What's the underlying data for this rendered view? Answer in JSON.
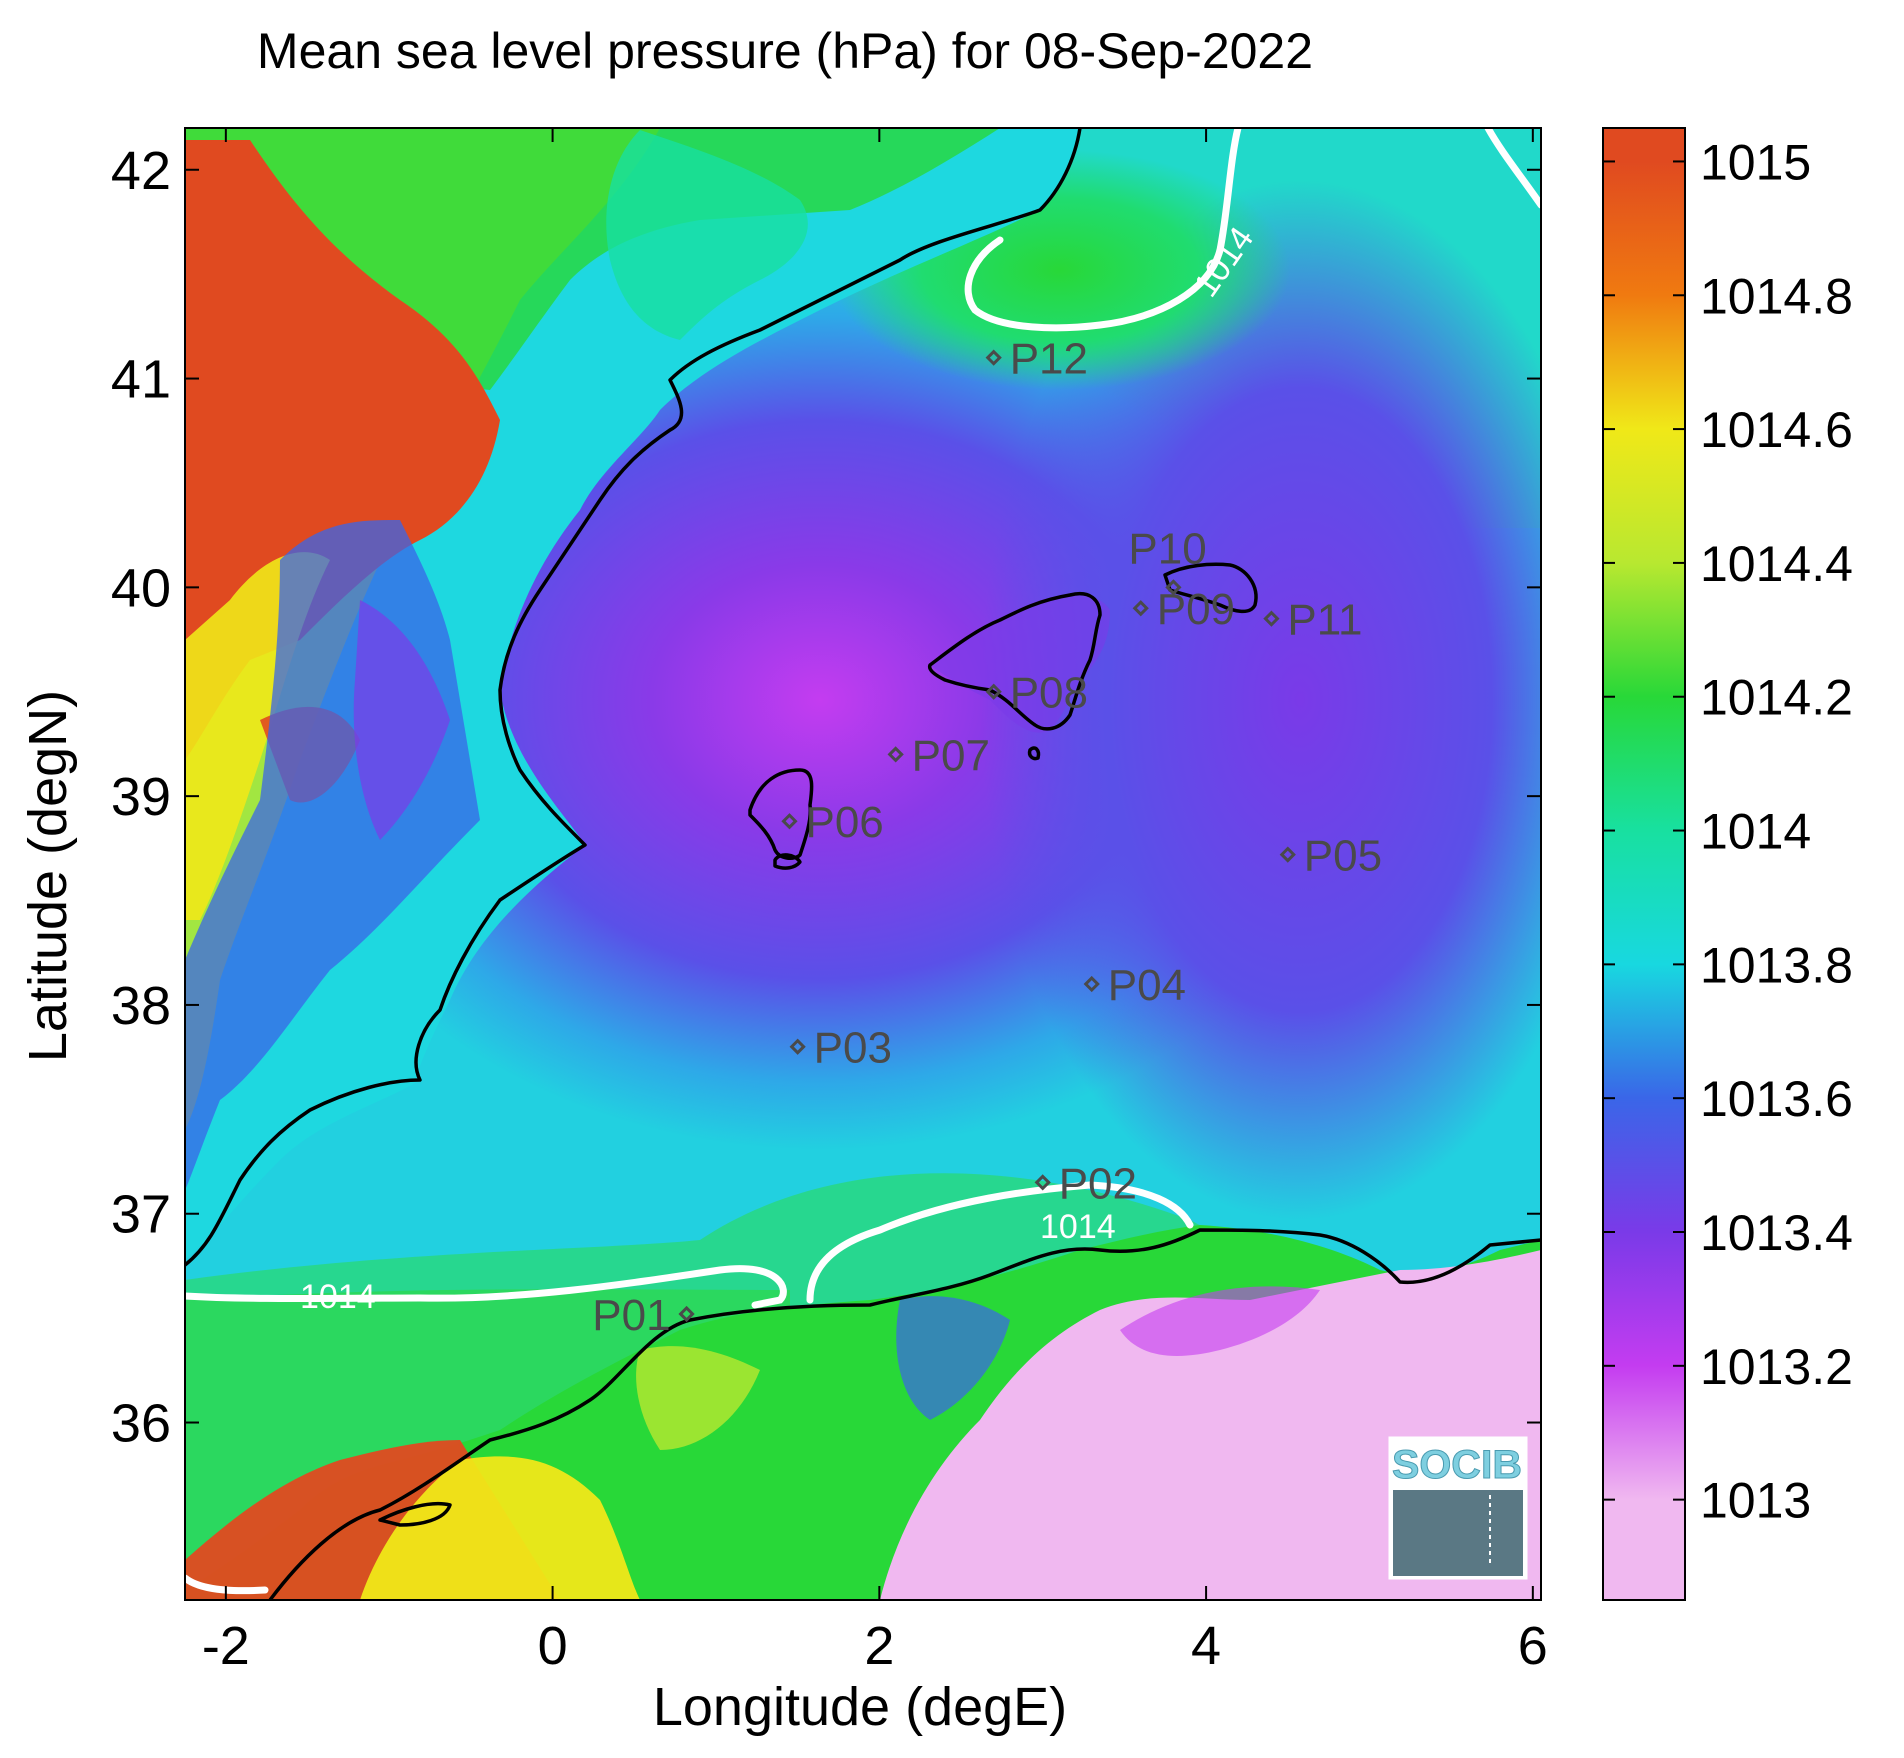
{
  "title": "Mean sea level pressure (hPa) for 08-Sep-2022",
  "axes": {
    "xlabel": "Longitude (degE)",
    "ylabel": "Latitude (degN)",
    "xlim": [
      -2.25,
      6.05
    ],
    "ylim": [
      35.15,
      42.2
    ],
    "xticks": [
      {
        "v": -2,
        "label": "-2"
      },
      {
        "v": 0,
        "label": "0"
      },
      {
        "v": 2,
        "label": "2"
      },
      {
        "v": 4,
        "label": "4"
      },
      {
        "v": 6,
        "label": "6"
      }
    ],
    "yticks": [
      {
        "v": 36,
        "label": "36"
      },
      {
        "v": 37,
        "label": "37"
      },
      {
        "v": 38,
        "label": "38"
      },
      {
        "v": 39,
        "label": "39"
      },
      {
        "v": 40,
        "label": "40"
      },
      {
        "v": 41,
        "label": "41"
      },
      {
        "v": 42,
        "label": "42"
      }
    ]
  },
  "colorbar": {
    "range": [
      1012.85,
      1015.05
    ],
    "ticks": [
      "1013",
      "1013.2",
      "1013.4",
      "1013.6",
      "1013.8",
      "1014",
      "1014.2",
      "1014.4",
      "1014.6",
      "1014.8",
      "1015"
    ],
    "tick_values": [
      1013,
      1013.2,
      1013.4,
      1013.6,
      1013.8,
      1014,
      1014.2,
      1014.4,
      1014.6,
      1014.8,
      1015
    ],
    "colors": [
      "#f0b8f0",
      "#c43cf0",
      "#7a3ae8",
      "#3a66e8",
      "#18d8e0",
      "#18e0a0",
      "#28d838",
      "#b8e830",
      "#f0e818",
      "#f07a10",
      "#e04a20"
    ]
  },
  "contour_level": "1014",
  "contour_labels": [
    "1014",
    "1014",
    "1014"
  ],
  "stations": [
    {
      "id": "P01",
      "lon": 0.82,
      "lat": 36.52
    },
    {
      "id": "P02",
      "lon": 3.0,
      "lat": 37.15
    },
    {
      "id": "P03",
      "lon": 1.5,
      "lat": 37.8
    },
    {
      "id": "P04",
      "lon": 3.3,
      "lat": 38.1
    },
    {
      "id": "P05",
      "lon": 4.5,
      "lat": 38.72
    },
    {
      "id": "P06",
      "lon": 1.45,
      "lat": 38.88
    },
    {
      "id": "P07",
      "lon": 2.1,
      "lat": 39.2
    },
    {
      "id": "P08",
      "lon": 2.7,
      "lat": 39.5
    },
    {
      "id": "P09",
      "lon": 3.6,
      "lat": 39.9
    },
    {
      "id": "P10",
      "lon": 3.8,
      "lat": 40.0
    },
    {
      "id": "P11",
      "lon": 4.4,
      "lat": 39.85
    },
    {
      "id": "P12",
      "lon": 2.7,
      "lat": 41.1
    }
  ],
  "logo": "SOCIB"
}
